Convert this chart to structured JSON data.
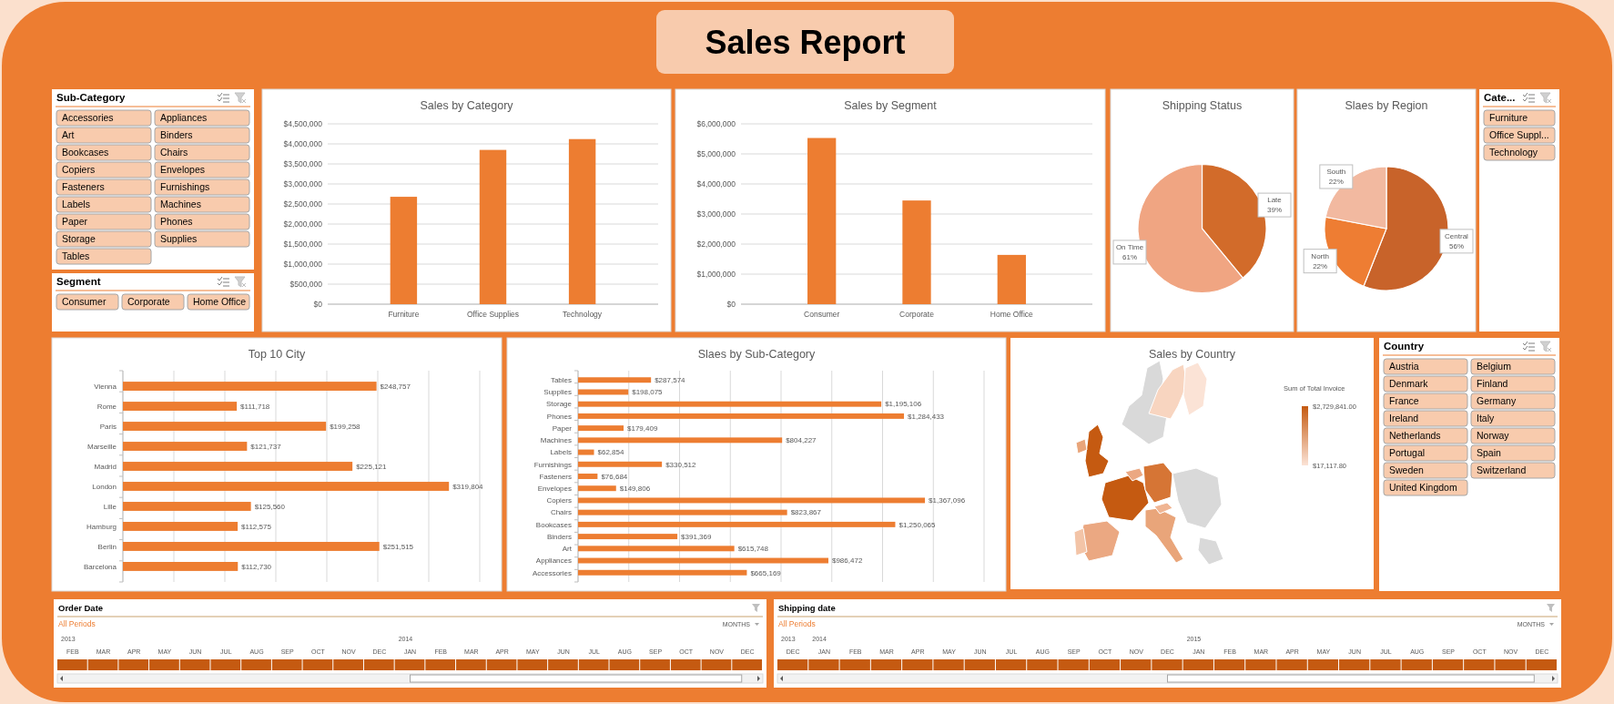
{
  "chart_data": [
    {
      "type": "other",
      "title": "Sales Report"
    },
    {
      "type": "other",
      "title": "Sub-Category",
      "annotations": [
        "Accessories",
        "Appliances",
        "Art",
        "Binders",
        "Bookcases",
        "Chairs",
        "Copiers",
        "Envelopes",
        "Fasteners",
        "Furnishings",
        "Labels",
        "Machines",
        "Paper",
        "Phones",
        "Storage",
        "Supplies",
        "Tables"
      ]
    },
    {
      "type": "bar",
      "title": "Sales by Category",
      "categories": [
        "Furniture",
        "Office Supplies",
        "Technology"
      ],
      "values": [
        2680000,
        3850000,
        4120000
      ],
      "color": "#ed7d31",
      "ylim": [
        0,
        4500000
      ],
      "yticks": [
        {
          "value": 0,
          "label": "$0"
        },
        {
          "value": 500000,
          "label": "$500,000"
        },
        {
          "value": 1000000,
          "label": "$1,000,000"
        },
        {
          "value": 1500000,
          "label": "$1,500,000"
        },
        {
          "value": 2000000,
          "label": "$2,000,000"
        },
        {
          "value": 2500000,
          "label": "$2,500,000"
        },
        {
          "value": 3000000,
          "label": "$3,000,000"
        },
        {
          "value": 3500000,
          "label": "$3,500,000"
        },
        {
          "value": 4000000,
          "label": "$4,000,000"
        },
        {
          "value": 4500000,
          "label": "$4,500,000"
        }
      ],
      "grid": "y"
    },
    {
      "type": "bar",
      "title": "Sales by Segment",
      "categories": [
        "Consumer",
        "Corporate",
        "Home Office"
      ],
      "values": [
        5530000,
        3450000,
        1640000
      ],
      "color": "#ed7d31",
      "ylim": [
        0,
        6000000
      ],
      "yticks": [
        {
          "value": 0,
          "label": "$0"
        },
        {
          "value": 1000000,
          "label": "$1,000,000"
        },
        {
          "value": 2000000,
          "label": "$2,000,000"
        },
        {
          "value": 3000000,
          "label": "$3,000,000"
        },
        {
          "value": 4000000,
          "label": "$4,000,000"
        },
        {
          "value": 5000000,
          "label": "$5,000,000"
        },
        {
          "value": 6000000,
          "label": "$6,000,000"
        }
      ],
      "grid": "y"
    },
    {
      "type": "pie",
      "title": "Shipping Status",
      "categories": [
        "Late",
        "On Time"
      ],
      "values": [
        39,
        61
      ],
      "colors": [
        "#d26b2a",
        "#f0a582"
      ],
      "value_labels": [
        "39%",
        "61%"
      ]
    },
    {
      "type": "pie",
      "title": "Slaes by Region",
      "categories": [
        "Central",
        "North",
        "South"
      ],
      "values": [
        56,
        22,
        22
      ],
      "colors": [
        "#c8632a",
        "#ee7d33",
        "#f2b9a0"
      ],
      "value_labels": [
        "56%",
        "22%",
        "22%"
      ]
    },
    {
      "type": "other",
      "title": "Cate...",
      "annotations": [
        "Furniture",
        "Office Suppl...",
        "Technology"
      ]
    },
    {
      "type": "other",
      "title": "Segment",
      "annotations": [
        "Consumer",
        "Corporate",
        "Home Office"
      ]
    },
    {
      "type": "bar",
      "orientation": "horizontal",
      "title": "Top 10 City",
      "categories": [
        "Vienna",
        "Rome",
        "Paris",
        "Marseille",
        "Madrid",
        "London",
        "Lille",
        "Hamburg",
        "Berlin",
        "Barcelona"
      ],
      "values": [
        248757,
        111718,
        199258,
        121737,
        225121,
        319804,
        125560,
        112575,
        251515,
        112730
      ],
      "value_labels": [
        "$248,757",
        "$111,718",
        "$199,258",
        "$121,737",
        "$225,121",
        "$319,804",
        "$125,560",
        "$112,575",
        "$251,515",
        "$112,730"
      ],
      "color": "#ed7d31",
      "xlim": [
        0,
        350000
      ],
      "xticks": [
        {
          "value": 0,
          "label": null
        },
        {
          "value": 50000,
          "label": null
        },
        {
          "value": 100000,
          "label": null
        },
        {
          "value": 150000,
          "label": null
        },
        {
          "value": 200000,
          "label": null
        },
        {
          "value": 250000,
          "label": null
        },
        {
          "value": 300000,
          "label": null
        },
        {
          "value": 350000,
          "label": null
        }
      ],
      "grid": "x",
      "tick_labels": "y"
    },
    {
      "type": "bar",
      "orientation": "horizontal",
      "title": "Slaes by Sub-Category",
      "categories": [
        "Tables",
        "Supplies",
        "Storage",
        "Phones",
        "Paper",
        "Machines",
        "Labels",
        "Furnishings",
        "Fasteners",
        "Envelopes",
        "Copiers",
        "Chairs",
        "Bookcases",
        "Binders",
        "Art",
        "Appliances",
        "Accessories"
      ],
      "values": [
        287574,
        198075,
        1195106,
        1284433,
        179409,
        804227,
        62854,
        330512,
        76684,
        149806,
        1367096,
        823867,
        1250065,
        391369,
        615748,
        986472,
        665169
      ],
      "value_labels": [
        "$287,574",
        "$198,075",
        "$1,195,106",
        "$1,284,433",
        "$179,409",
        "$804,227",
        "$62,854",
        "$330,512",
        "$76,684",
        "$149,806",
        "$1,367,096",
        "$823,867",
        "$1,250,065",
        "$391,369",
        "$615,748",
        "$986,472",
        "$665,169"
      ],
      "color": "#ed7d31",
      "xlim": [
        0,
        1600000
      ],
      "xticks": [
        {
          "value": 0,
          "label": null
        },
        {
          "value": 200000,
          "label": null
        },
        {
          "value": 400000,
          "label": null
        },
        {
          "value": 600000,
          "label": null
        },
        {
          "value": 800000,
          "label": null
        },
        {
          "value": 1000000,
          "label": null
        },
        {
          "value": 1200000,
          "label": null
        },
        {
          "value": 1400000,
          "label": null
        },
        {
          "value": 1600000,
          "label": null
        }
      ],
      "grid": "x",
      "tick_labels": "y"
    },
    {
      "type": "other",
      "title": "Sales by Country",
      "clabel": "Sum of Total Invoice",
      "annotations": [
        "$2,729,841.00",
        "$17,117.80"
      ]
    },
    {
      "type": "other",
      "title": "Country",
      "annotations": [
        "Austria",
        "Belgium",
        "Denmark",
        "Finland",
        "France",
        "Germany",
        "Ireland",
        "Italy",
        "Netherlands",
        "Norway",
        "Portugal",
        "Spain",
        "Sweden",
        "Switzerland",
        "United Kingdom"
      ]
    },
    {
      "type": "other",
      "title": "Order Date",
      "annotations": [
        "All Periods",
        "MONTHS",
        "2013",
        "2014"
      ],
      "categories": [
        "FEB",
        "MAR",
        "APR",
        "MAY",
        "JUN",
        "JUL",
        "AUG",
        "SEP",
        "OCT",
        "NOV",
        "DEC",
        "JAN",
        "FEB",
        "MAR",
        "APR",
        "MAY",
        "JUN",
        "JUL",
        "AUG",
        "SEP",
        "OCT",
        "NOV",
        "DEC"
      ]
    },
    {
      "type": "other",
      "title": "Shipping date",
      "annotations": [
        "All Periods",
        "MONTHS",
        "2013",
        "2014",
        "2015"
      ],
      "categories": [
        "DEC",
        "JAN",
        "FEB",
        "MAR",
        "APR",
        "MAY",
        "JUN",
        "JUL",
        "AUG",
        "SEP",
        "OCT",
        "NOV",
        "DEC",
        "JAN",
        "FEB",
        "MAR",
        "APR",
        "MAY",
        "JUN",
        "JUL",
        "AUG",
        "SEP",
        "OCT",
        "NOV",
        "DEC"
      ]
    }
  ]
}
